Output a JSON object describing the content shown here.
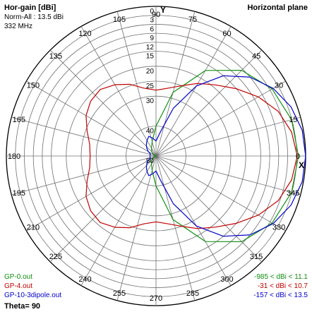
{
  "chart_data": {
    "type": "polar",
    "header": {
      "title": "Hor-gain [dBi]",
      "norm": "Norm-All : 13.5 dBi",
      "freq": "332 MHz",
      "plane": "Horizontal plane"
    },
    "axis_letters": {
      "y": "Y",
      "x": "X"
    },
    "angle_labels": [
      "0",
      "15",
      "30",
      "45",
      "60",
      "75",
      "90",
      "105",
      "120",
      "135",
      "150",
      "165",
      "180",
      "195",
      "210",
      "225",
      "240",
      "255",
      "270",
      "285",
      "300",
      "315",
      "330",
      "345"
    ],
    "angle_label_dirs": [
      0,
      15,
      30,
      45,
      60,
      75,
      90,
      105,
      120,
      135,
      150,
      165,
      180,
      195,
      210,
      225,
      240,
      255,
      270,
      285,
      300,
      315,
      330,
      345
    ],
    "radial_scale": {
      "unit": "dB",
      "max": 0,
      "min": -50
    },
    "ring_levels": [
      0,
      -3,
      -6,
      -9,
      -12,
      -15,
      -20,
      -25,
      -30,
      -40,
      -50
    ],
    "ring_labels": [
      "0",
      "3",
      "6",
      "9",
      "12",
      "15",
      "20",
      "25",
      "30",
      "40",
      "50"
    ],
    "spoke_step_deg": 15,
    "series": [
      {
        "name": "GP-0.out",
        "range_text": "-985 < dBi < 11.1",
        "color": "#109010",
        "angles": [
          0,
          15,
          30,
          45,
          60,
          75,
          90,
          105,
          120,
          135,
          150,
          165,
          180,
          195,
          210,
          225,
          240,
          255,
          270,
          285,
          300,
          315,
          330,
          345,
          360
        ],
        "values": [
          -2.4,
          -3.1,
          -5.2,
          -9.5,
          -17,
          -28,
          -40,
          -45,
          -47,
          -48,
          -49,
          -50,
          -50,
          -50,
          -49,
          -48,
          -47,
          -45,
          -40,
          -28,
          -17,
          -9.5,
          -5.2,
          -3.1,
          -2.4
        ]
      },
      {
        "name": "GP-4.out",
        "range_text": "-31 < dBi < 10.7",
        "color": "#c00000",
        "angles": [
          0,
          10,
          20,
          30,
          40,
          50,
          60,
          70,
          80,
          90,
          100,
          110,
          120,
          130,
          140,
          150,
          160,
          170,
          180,
          190,
          200,
          210,
          220,
          230,
          240,
          250,
          260,
          270,
          280,
          290,
          300,
          310,
          320,
          330,
          340,
          350,
          360
        ],
        "values": [
          -2.8,
          -4,
          -6.5,
          -10.5,
          -15,
          -19,
          -22,
          -25,
          -27,
          -28,
          -27,
          -24.5,
          -22.5,
          -21,
          -21.5,
          -23,
          -25.5,
          -27.5,
          -28,
          -27.5,
          -25.5,
          -23,
          -21.5,
          -21,
          -22.5,
          -24.5,
          -27,
          -28,
          -27,
          -25,
          -22,
          -19,
          -15,
          -10.5,
          -6.5,
          -4,
          -2.8
        ]
      },
      {
        "name": "GP-10-3dipole.out",
        "range_text": "-157 < dBi < 13.5",
        "color": "#0000c8",
        "angles": [
          0,
          10,
          20,
          30,
          40,
          50,
          60,
          70,
          80,
          90,
          100,
          110,
          120,
          130,
          140,
          150,
          160,
          170,
          180,
          190,
          200,
          210,
          220,
          230,
          240,
          250,
          260,
          270,
          280,
          290,
          300,
          310,
          320,
          330,
          340,
          350,
          360
        ],
        "values": [
          0,
          -0.4,
          -2,
          -4.8,
          -9,
          -15,
          -23,
          -33,
          -42,
          -45,
          -44,
          -43,
          -44,
          -45,
          -46,
          -47,
          -48,
          -48,
          -48,
          -48,
          -48,
          -47,
          -46,
          -45,
          -44,
          -43,
          -44,
          -45,
          -42,
          -33,
          -23,
          -15,
          -9,
          -4.8,
          -2,
          -0.4,
          0
        ]
      }
    ],
    "footer": {
      "theta": "Theta= 90"
    }
  }
}
